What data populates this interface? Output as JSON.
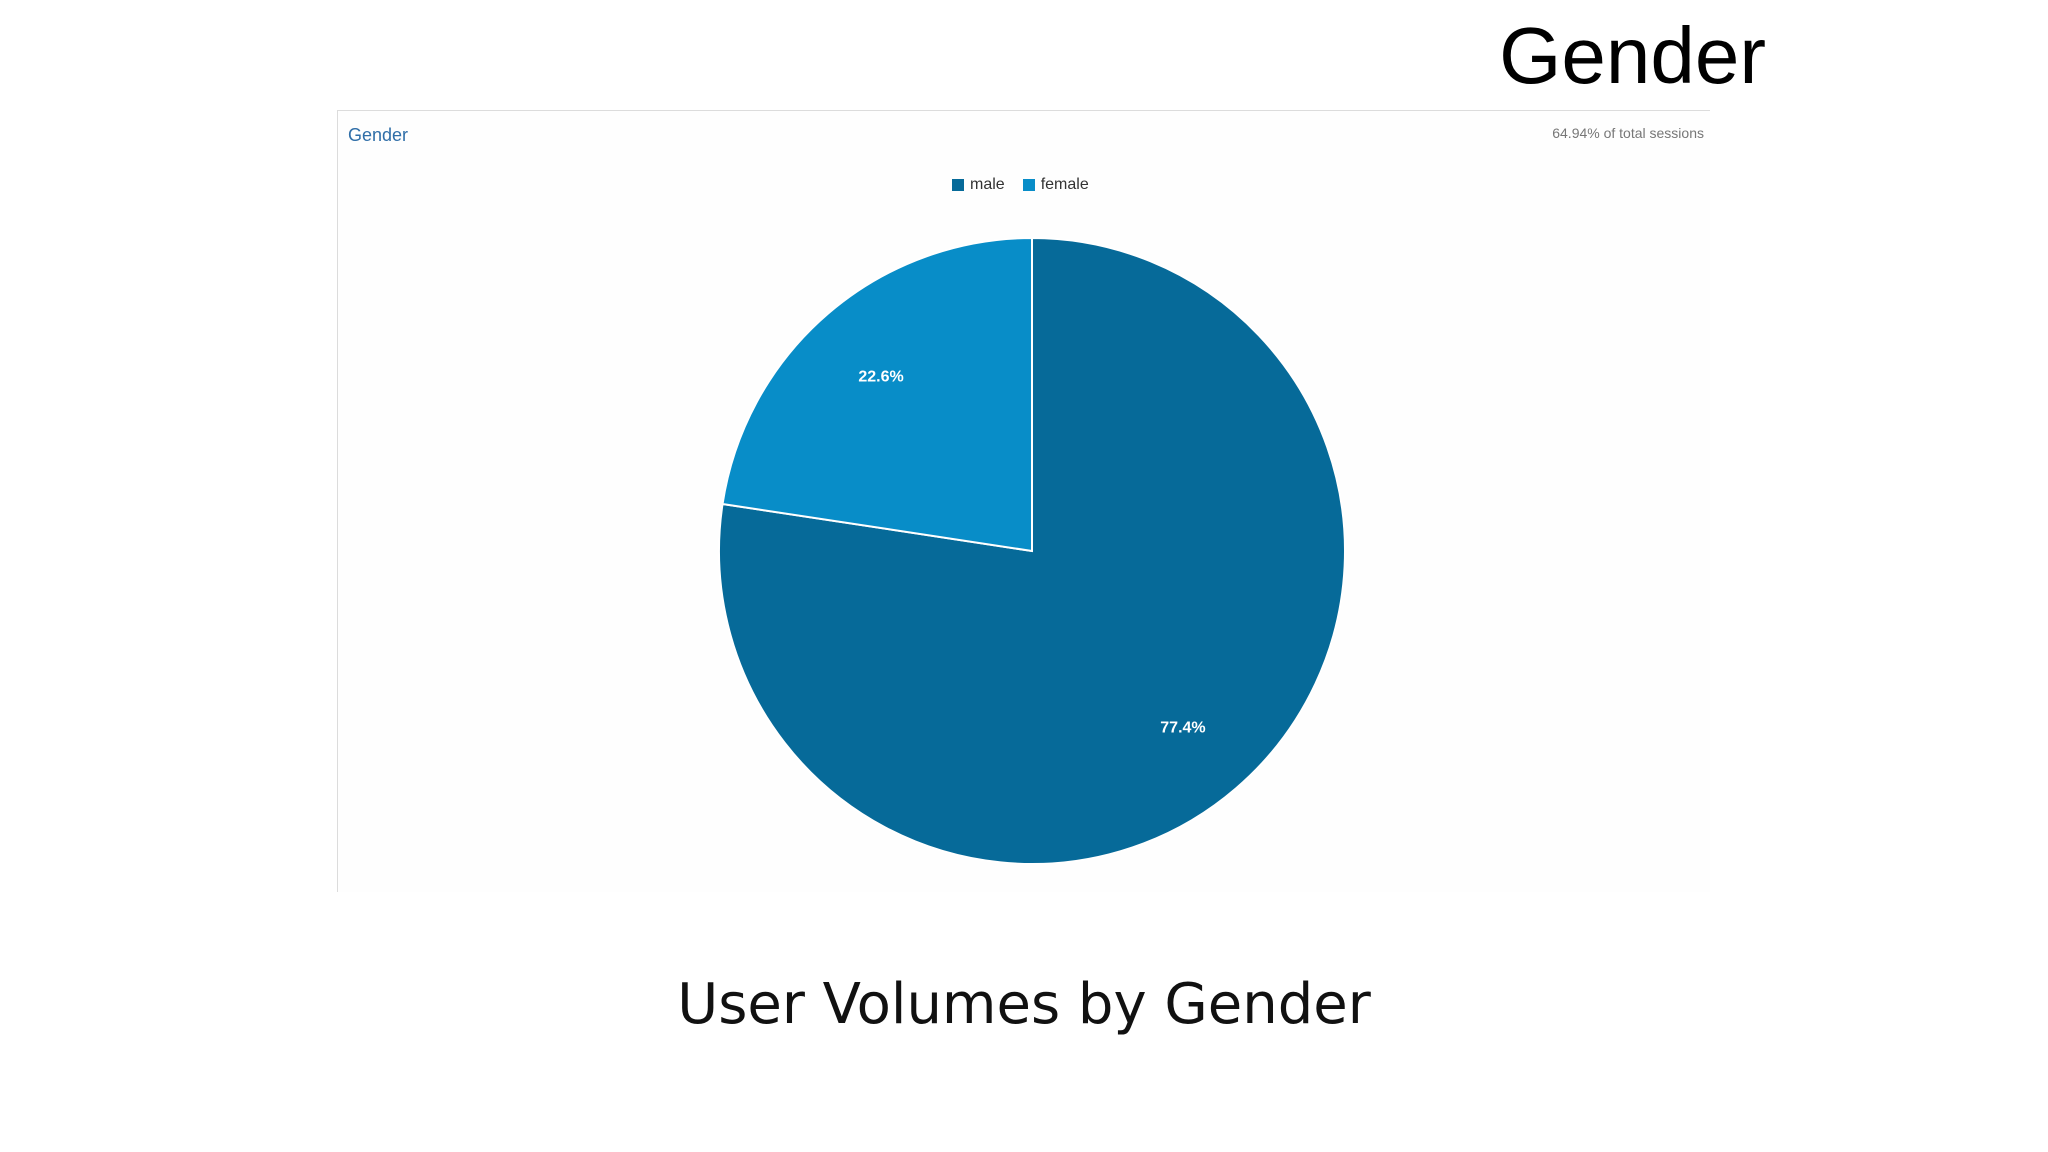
{
  "slide": {
    "title": "Gender",
    "caption": "User Volumes by Gender"
  },
  "panel": {
    "heading": "Gender",
    "note": "64.94% of total sessions"
  },
  "colors": {
    "male": "#066a99",
    "female": "#088dc8"
  },
  "chart_data": {
    "type": "pie",
    "title": "Gender",
    "legend_position": "top",
    "series": [
      {
        "name": "male",
        "value": 77.4,
        "label": "77.4%"
      },
      {
        "name": "female",
        "value": 22.6,
        "label": "22.6%"
      }
    ]
  }
}
